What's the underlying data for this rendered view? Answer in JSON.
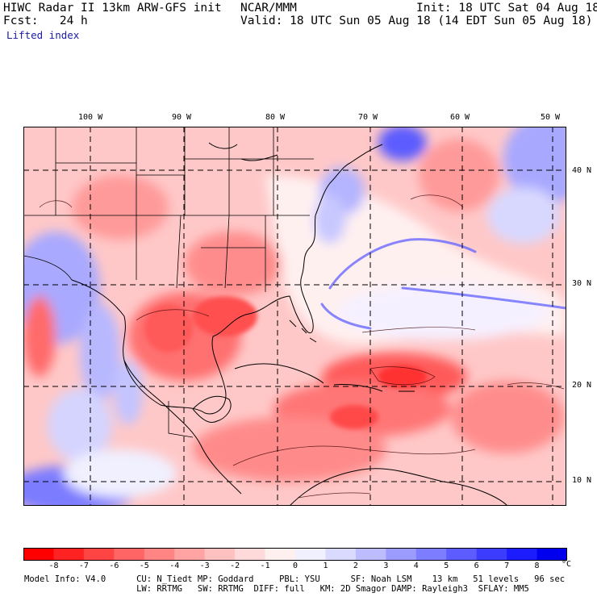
{
  "header": {
    "line1_left": "HIWC Radar II 13km ARW-GFS init",
    "line1_mid": "NCAR/MMM",
    "line1_right": "Init: 18 UTC Sat 04 Aug 18",
    "line2_left": "Fcst:   24 h",
    "line2_right": "Valid: 18 UTC Sun 05 Aug 18 (14 EDT Sun 05 Aug 18)",
    "field_name": "Lifted index"
  },
  "axes": {
    "lon_labels": [
      "100 W",
      "90 W",
      "80 W",
      "70 W",
      "60 W",
      "50 W"
    ],
    "lat_labels": [
      "40 N",
      "30 N",
      "20 N",
      "10 N"
    ]
  },
  "colorbar": {
    "labels": [
      "-8",
      "-7",
      "-6",
      "-5",
      "-4",
      "-3",
      "-2",
      "-1",
      "0",
      "1",
      "2",
      "3",
      "4",
      "5",
      "6",
      "7",
      "8"
    ],
    "unit": "°C",
    "colors": [
      "#ff0000",
      "#ff2222",
      "#ff4444",
      "#ff6565",
      "#ff8585",
      "#ffa3a3",
      "#ffc0c0",
      "#ffdada",
      "#fff0f0",
      "#f0f0ff",
      "#dadaff",
      "#bcbcff",
      "#9c9cff",
      "#7d7dff",
      "#5c5cff",
      "#3c3cff",
      "#1c1cff",
      "#0000ee"
    ]
  },
  "footer": {
    "line1": "Model Info: V4.0      CU: N_Tiedt MP: Goddard     PBL: YSU      SF: Noah LSM    13 km   51 levels   96 sec",
    "line2": "                      LW: RRTMG   SW: RRTMG  DIFF: full   KM: 2D Smagor DAMP: Rayleigh3  SFLAY: MM5"
  }
}
